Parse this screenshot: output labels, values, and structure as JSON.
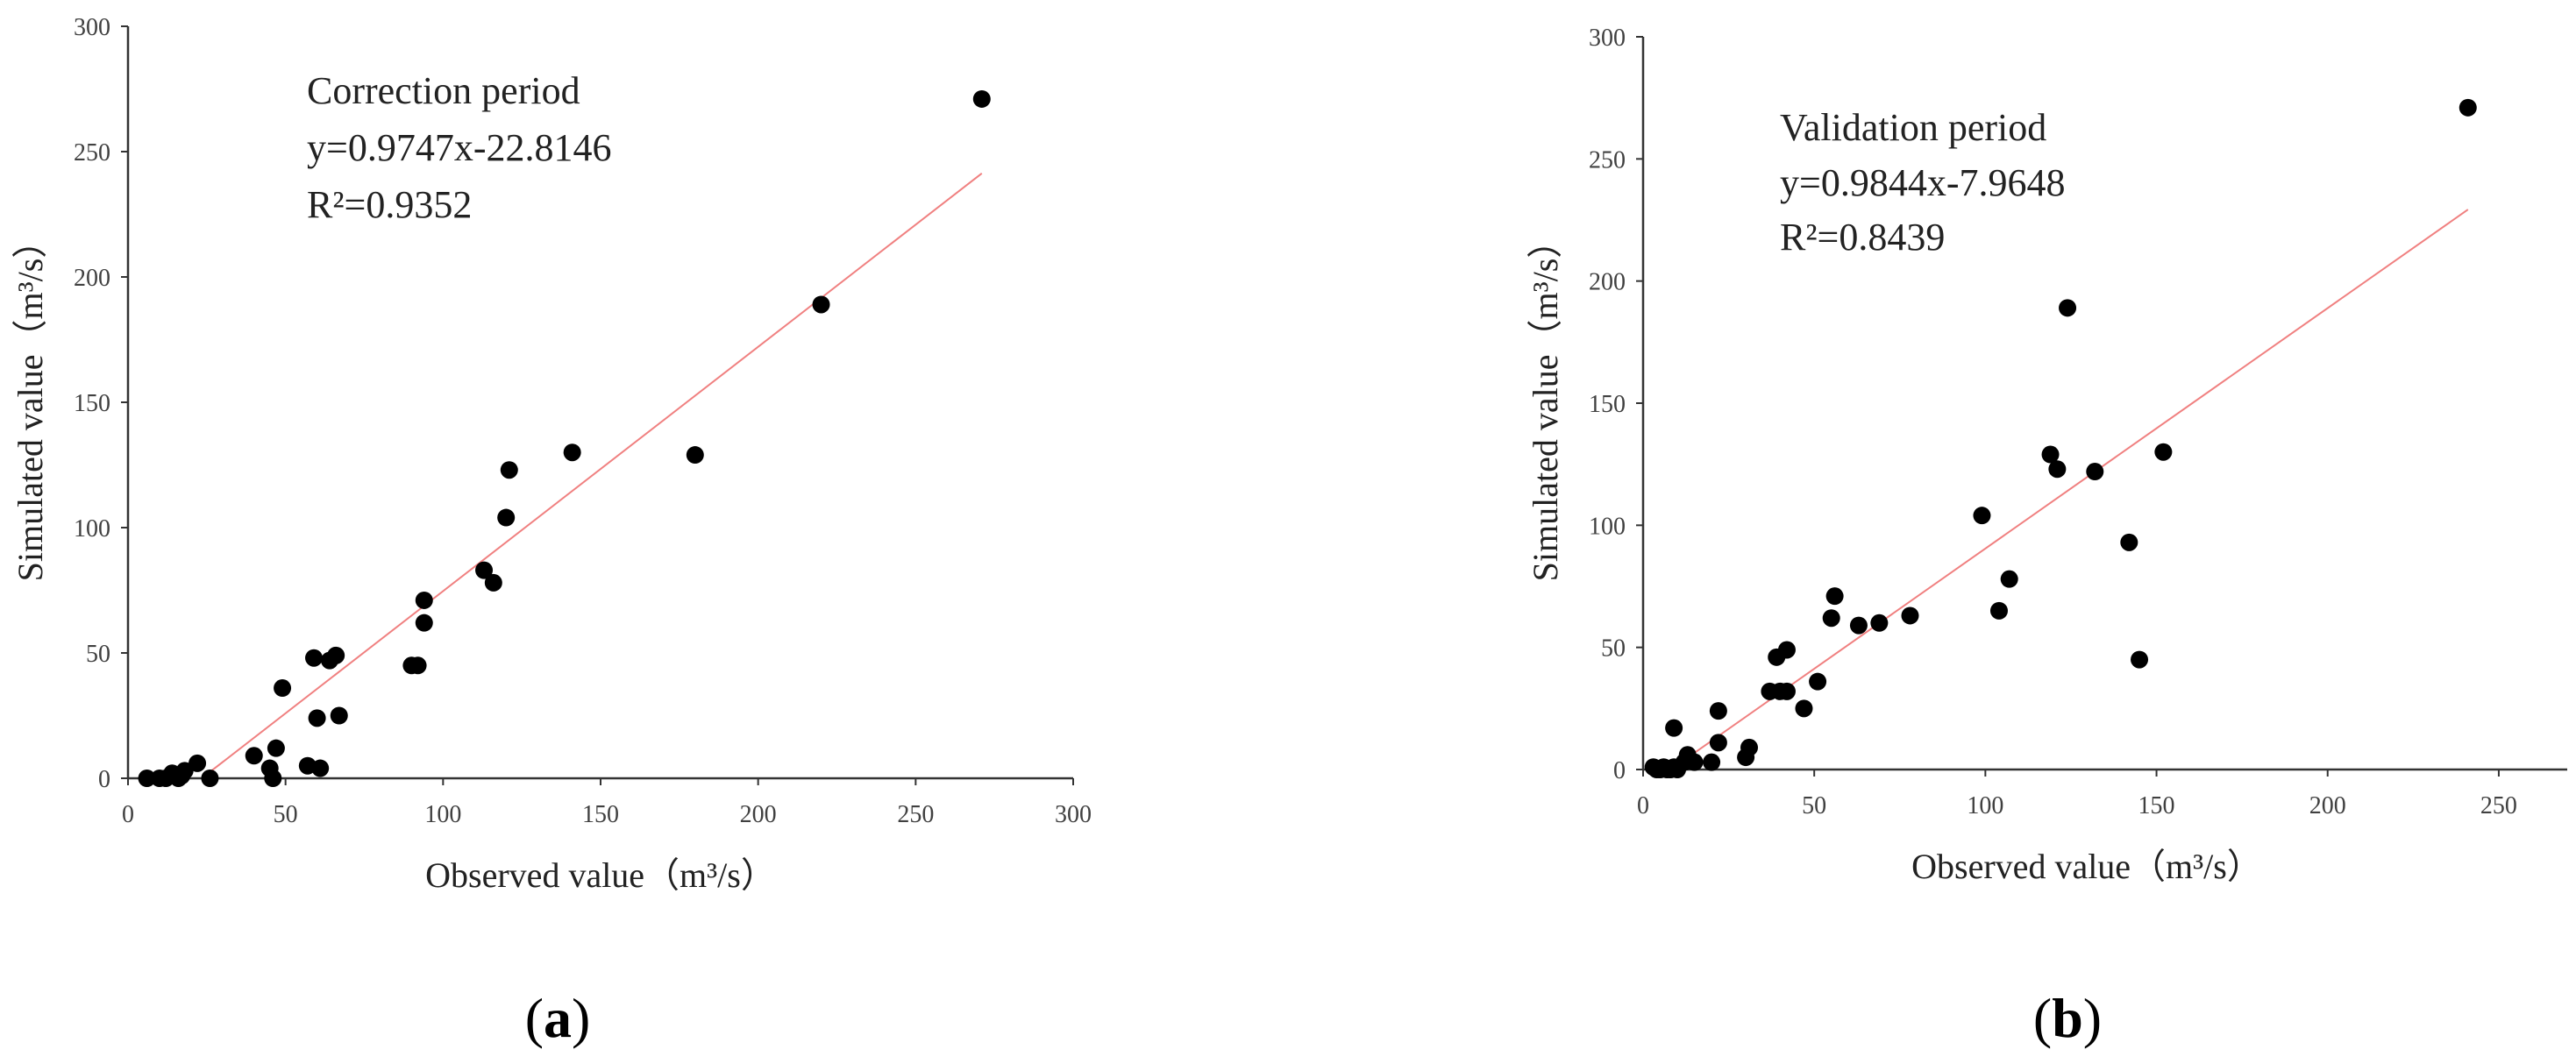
{
  "chart_data": [
    {
      "type": "scatter",
      "panel_label": "a",
      "title": "",
      "xlabel": "Observed value（m³/s）",
      "ylabel": "Simulated value（m³/s）",
      "xlim": [
        0,
        300
      ],
      "ylim": [
        0,
        300
      ],
      "xticks": [
        0,
        50,
        100,
        150,
        200,
        250,
        300
      ],
      "yticks": [
        0,
        50,
        100,
        150,
        200,
        250,
        300
      ],
      "grid": false,
      "annotation": [
        "Correction period",
        "y=0.9747x-22.8146",
        "R²=0.9352"
      ],
      "trendline": {
        "slope": 0.9747,
        "intercept": -22.8146,
        "x_range": [
          23.4,
          271
        ],
        "color": "#f08080"
      },
      "points": [
        [
          6,
          0
        ],
        [
          10,
          0
        ],
        [
          12,
          0
        ],
        [
          14,
          2
        ],
        [
          15,
          1
        ],
        [
          16,
          0
        ],
        [
          17,
          1
        ],
        [
          18,
          3
        ],
        [
          22,
          6
        ],
        [
          26,
          0
        ],
        [
          40,
          9
        ],
        [
          45,
          4
        ],
        [
          46,
          0
        ],
        [
          47,
          12
        ],
        [
          49,
          36
        ],
        [
          57,
          5
        ],
        [
          59,
          48
        ],
        [
          60,
          24
        ],
        [
          61,
          4
        ],
        [
          64,
          47
        ],
        [
          66,
          49
        ],
        [
          67,
          25
        ],
        [
          90,
          45
        ],
        [
          92,
          45
        ],
        [
          94,
          62
        ],
        [
          94,
          71
        ],
        [
          113,
          83
        ],
        [
          116,
          78
        ],
        [
          120,
          104
        ],
        [
          121,
          123
        ],
        [
          141,
          130
        ],
        [
          180,
          129
        ],
        [
          220,
          189
        ],
        [
          271,
          271
        ]
      ]
    },
    {
      "type": "scatter",
      "panel_label": "b",
      "title": "",
      "xlabel": "Observed value（m³/s）",
      "ylabel": "Simulated value（m³/s）",
      "xlim": [
        0,
        270
      ],
      "ylim": [
        0,
        300
      ],
      "xticks": [
        0,
        50,
        100,
        150,
        200,
        250
      ],
      "yticks": [
        0,
        50,
        100,
        150,
        200,
        250,
        300
      ],
      "grid": false,
      "annotation": [
        "Validation period",
        "y=0.9844x-7.9648",
        "R²=0.8439"
      ],
      "trendline": {
        "slope": 0.9844,
        "intercept": -7.9648,
        "x_range": [
          8.1,
          241
        ],
        "color": "#f08080"
      },
      "points": [
        [
          3,
          1
        ],
        [
          4,
          0
        ],
        [
          5,
          0
        ],
        [
          6,
          1
        ],
        [
          7,
          0
        ],
        [
          8,
          0
        ],
        [
          9,
          1
        ],
        [
          9,
          17
        ],
        [
          10,
          0
        ],
        [
          12,
          3
        ],
        [
          13,
          6
        ],
        [
          15,
          3
        ],
        [
          20,
          3
        ],
        [
          22,
          11
        ],
        [
          22,
          24
        ],
        [
          30,
          5
        ],
        [
          31,
          9
        ],
        [
          37,
          32
        ],
        [
          39,
          46
        ],
        [
          40,
          32
        ],
        [
          42,
          32
        ],
        [
          42,
          49
        ],
        [
          47,
          25
        ],
        [
          51,
          36
        ],
        [
          55,
          62
        ],
        [
          56,
          71
        ],
        [
          63,
          59
        ],
        [
          69,
          60
        ],
        [
          78,
          63
        ],
        [
          99,
          104
        ],
        [
          104,
          65
        ],
        [
          107,
          78
        ],
        [
          119,
          129
        ],
        [
          121,
          123
        ],
        [
          124,
          189
        ],
        [
          132,
          122
        ],
        [
          142,
          93
        ],
        [
          145,
          45
        ],
        [
          152,
          130
        ],
        [
          241,
          271
        ]
      ]
    }
  ]
}
